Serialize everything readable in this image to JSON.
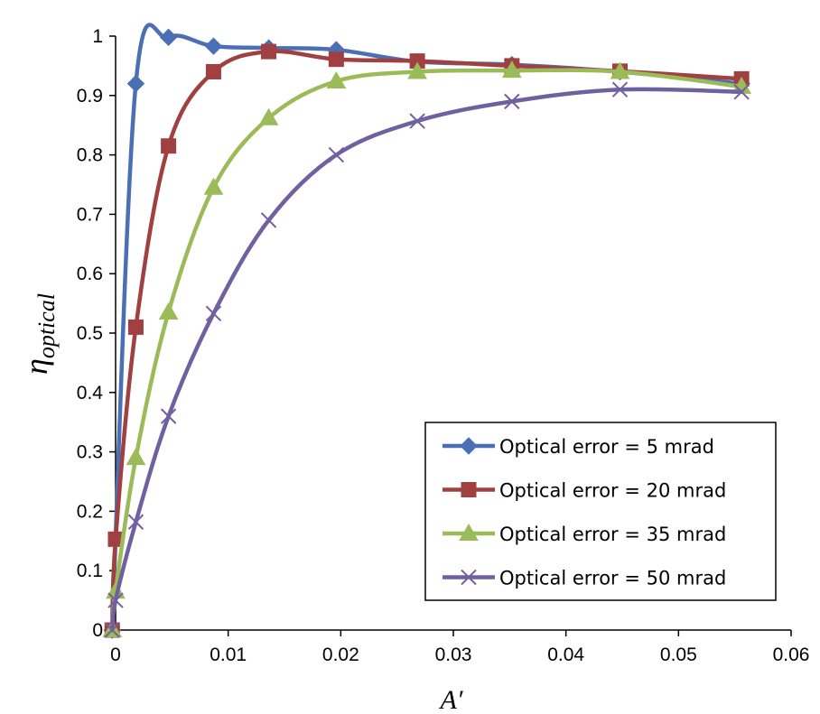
{
  "chart_data": {
    "type": "line",
    "title": "",
    "xlabel": "A′",
    "ylabel": "η",
    "ylabel_subscript": "optical",
    "xlim": [
      0,
      0.06
    ],
    "ylim": [
      0,
      1
    ],
    "grid": false,
    "legend_position": "lower-right",
    "x_ticks": [
      "0",
      "0.01",
      "0.02",
      "0.03",
      "0.04",
      "0.05",
      "0.06"
    ],
    "y_ticks": [
      "0",
      "0.1",
      "0.2",
      "0.3",
      "0.4",
      "0.5",
      "0.6",
      "0.7",
      "0.8",
      "0.9",
      "1"
    ],
    "series": [
      {
        "name": "Optical error = 5 mrad",
        "color": "#4a6fb5",
        "marker": "diamond",
        "x": [
          -0.0003,
          0.0018,
          0.0047,
          0.0087,
          0.0136,
          0.0196,
          0.0268,
          0.0352,
          0.0448,
          0.0556
        ],
        "y": [
          0.0,
          0.92,
          0.998,
          0.983,
          0.98,
          0.977,
          0.957,
          0.952,
          0.94,
          0.92
        ]
      },
      {
        "name": "Optical error = 20 mrad",
        "color": "#a04040",
        "marker": "square",
        "x": [
          -0.0003,
          0.0,
          0.0018,
          0.0047,
          0.0087,
          0.0136,
          0.0196,
          0.0268,
          0.0352,
          0.0448,
          0.0556
        ],
        "y": [
          0.0,
          0.153,
          0.51,
          0.815,
          0.94,
          0.974,
          0.961,
          0.958,
          0.95,
          0.941,
          0.928
        ]
      },
      {
        "name": "Optical error = 35 mrad",
        "color": "#9bbb59",
        "marker": "triangle",
        "x": [
          -0.0003,
          0.0,
          0.0018,
          0.0047,
          0.0087,
          0.0136,
          0.0196,
          0.0268,
          0.0352,
          0.0448,
          0.0556
        ],
        "y": [
          0.0,
          0.065,
          0.29,
          0.535,
          0.745,
          0.862,
          0.924,
          0.94,
          0.942,
          0.94,
          0.915
        ]
      },
      {
        "name": "Optical error = 50 mrad",
        "color": "#7060a0",
        "marker": "x",
        "x": [
          -0.0003,
          0.0,
          0.0018,
          0.0047,
          0.0087,
          0.0136,
          0.0196,
          0.0268,
          0.0352,
          0.0448,
          0.0556
        ],
        "y": [
          0.0,
          0.05,
          0.182,
          0.36,
          0.533,
          0.69,
          0.8,
          0.857,
          0.89,
          0.91,
          0.906
        ]
      }
    ]
  }
}
